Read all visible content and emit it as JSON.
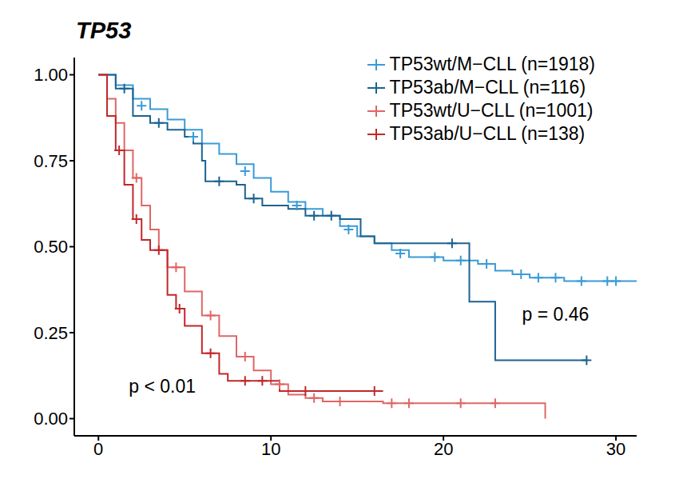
{
  "chart_data": {
    "type": "line",
    "title": "TP53",
    "line_style": "step",
    "marker": "plus",
    "xlim": [
      -1.4,
      31.2
    ],
    "ylim": [
      -0.05,
      1.05
    ],
    "xticks": [
      0,
      10,
      20,
      30
    ],
    "yticks": [
      {
        "value": 0,
        "label": "0.00"
      },
      {
        "value": 0.25,
        "label": "0.25"
      },
      {
        "value": 0.5,
        "label": "0.50"
      },
      {
        "value": 0.75,
        "label": "0.75"
      },
      {
        "value": 1,
        "label": "1.00"
      }
    ],
    "grid": false,
    "legend": "top right",
    "annotations": [
      {
        "text": "p = 0.46",
        "x": 26.5,
        "y": 0.305
      },
      {
        "text": "p < 0.01",
        "x": 3.7,
        "y": 0.095
      }
    ],
    "series": [
      {
        "name": "TP53wt/M−CLL (n=1918)",
        "color": "#3b9bd6",
        "x": [
          0,
          1,
          2,
          3,
          4,
          5,
          6,
          7,
          8,
          9,
          10,
          11,
          12,
          13,
          14,
          15,
          16,
          17,
          18,
          20,
          22,
          23,
          24,
          25,
          27,
          31.2
        ],
        "values": [
          1,
          0.97,
          0.93,
          0.9,
          0.87,
          0.84,
          0.8,
          0.77,
          0.74,
          0.7,
          0.66,
          0.63,
          0.61,
          0.59,
          0.56,
          0.53,
          0.51,
          0.49,
          0.47,
          0.46,
          0.45,
          0.43,
          0.42,
          0.41,
          0.4,
          0.4
        ],
        "censored": {
          "x": [
            2.5,
            5.5,
            8.5,
            11.5,
            14.5,
            17.5,
            19.5,
            21,
            22.5,
            24.5,
            25.5,
            26.5,
            28,
            29.5,
            30
          ],
          "values": [
            0.91,
            0.82,
            0.72,
            0.62,
            0.55,
            0.48,
            0.47,
            0.46,
            0.45,
            0.42,
            0.41,
            0.41,
            0.4,
            0.4,
            0.4
          ]
        }
      },
      {
        "name": "TP53ab/M−CLL (n=116)",
        "color": "#1b6391",
        "x": [
          0,
          1,
          2,
          3,
          4,
          5,
          5.5,
          6,
          6.2,
          8,
          8.5,
          9.5,
          11,
          12,
          14,
          15.2,
          16,
          21.5,
          23,
          28.3
        ],
        "values": [
          1,
          0.96,
          0.88,
          0.86,
          0.84,
          0.82,
          0.8,
          0.75,
          0.69,
          0.68,
          0.64,
          0.62,
          0.61,
          0.59,
          0.58,
          0.53,
          0.51,
          0.34,
          0.17,
          0.17
        ],
        "censored": {
          "x": [
            1.5,
            3.5,
            7,
            9,
            12.5,
            13.5,
            20.5,
            28.3
          ],
          "values": [
            0.96,
            0.86,
            0.69,
            0.64,
            0.59,
            0.59,
            0.51,
            0.17
          ]
        }
      },
      {
        "name": "TP53wt/U−CLL (n=1001)",
        "color": "#e06666",
        "x": [
          0,
          0.5,
          1,
          1.5,
          2,
          2.5,
          3,
          3.5,
          4,
          5,
          6,
          7,
          8,
          9,
          10,
          11,
          12,
          13,
          16.5,
          25.9,
          25.9
        ],
        "values": [
          1,
          0.93,
          0.86,
          0.78,
          0.7,
          0.62,
          0.55,
          0.49,
          0.44,
          0.37,
          0.3,
          0.24,
          0.18,
          0.14,
          0.1,
          0.07,
          0.06,
          0.05,
          0.045,
          0.045,
          0
        ],
        "censored": {
          "x": [
            2.2,
            4.5,
            6.5,
            8.5,
            10.5,
            12.5,
            14,
            17,
            18,
            21,
            23
          ],
          "values": [
            0.7,
            0.44,
            0.3,
            0.18,
            0.1,
            0.06,
            0.05,
            0.045,
            0.045,
            0.045,
            0.045
          ]
        }
      },
      {
        "name": "TP53ab/U−CLL (n=138)",
        "color": "#c0282b",
        "x": [
          0,
          0.5,
          1,
          1.5,
          2,
          2.5,
          3,
          4,
          4.5,
          5,
          6,
          7,
          7.5,
          10.5,
          16.5
        ],
        "values": [
          1,
          0.88,
          0.78,
          0.68,
          0.58,
          0.52,
          0.49,
          0.36,
          0.32,
          0.27,
          0.19,
          0.13,
          0.11,
          0.08,
          0.08
        ],
        "censored": {
          "x": [
            1.2,
            2.2,
            3.5,
            4.7,
            6.5,
            8.5,
            9.5,
            12,
            16
          ],
          "values": [
            0.78,
            0.58,
            0.49,
            0.32,
            0.19,
            0.11,
            0.11,
            0.08,
            0.08
          ]
        }
      }
    ]
  }
}
